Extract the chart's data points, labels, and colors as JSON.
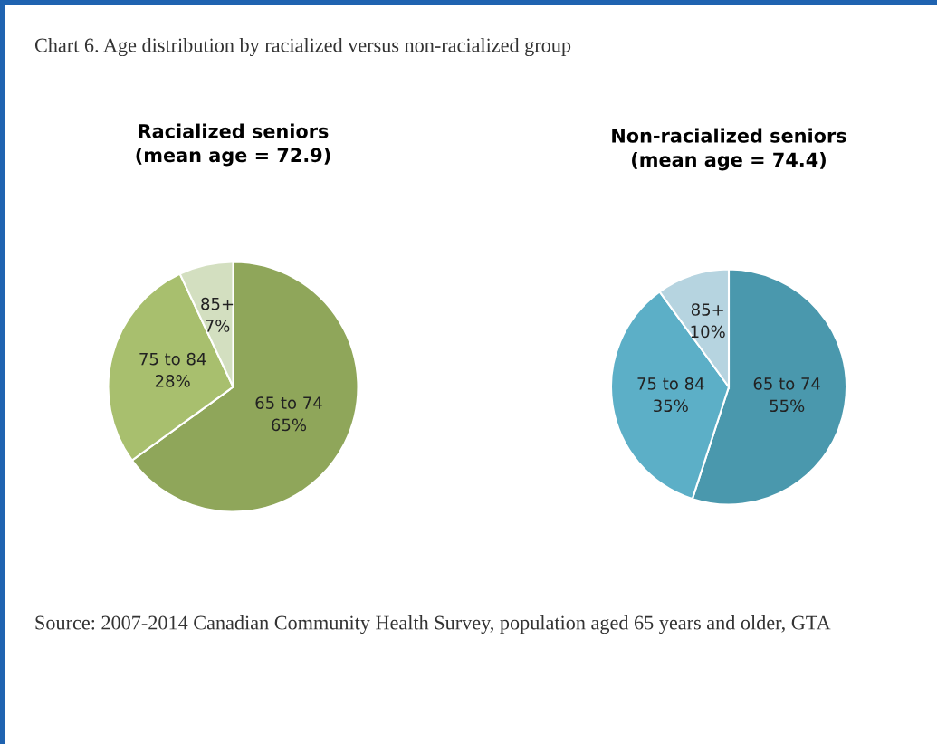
{
  "chart_data": [
    {
      "type": "pie",
      "title": "Racialized seniors\n(mean age = 72.9)",
      "annotations": [
        "Chart 6. Age distribution by racialized versus non-racialized group"
      ],
      "categories": [
        "65 to 74",
        "75 to 84",
        "85+"
      ],
      "values": [
        65,
        28,
        7
      ],
      "value_labels": [
        "65%",
        "28%",
        "7%"
      ],
      "colors": [
        "#8fa65a",
        "#a8bf6e",
        "#d3dfc0"
      ]
    },
    {
      "type": "pie",
      "title": "Non-racialized seniors\n(mean age = 74.4)",
      "annotations": [
        "Source: 2007-2014 Canadian Community Health Survey, population aged 65 years and older, GTA"
      ],
      "categories": [
        "65 to 74",
        "75 to 84",
        "85+"
      ],
      "values": [
        55,
        35,
        10
      ],
      "value_labels": [
        "55%",
        "35%",
        "10%"
      ],
      "colors": [
        "#4a98ad",
        "#5cafc7",
        "#b6d4e0"
      ]
    }
  ]
}
